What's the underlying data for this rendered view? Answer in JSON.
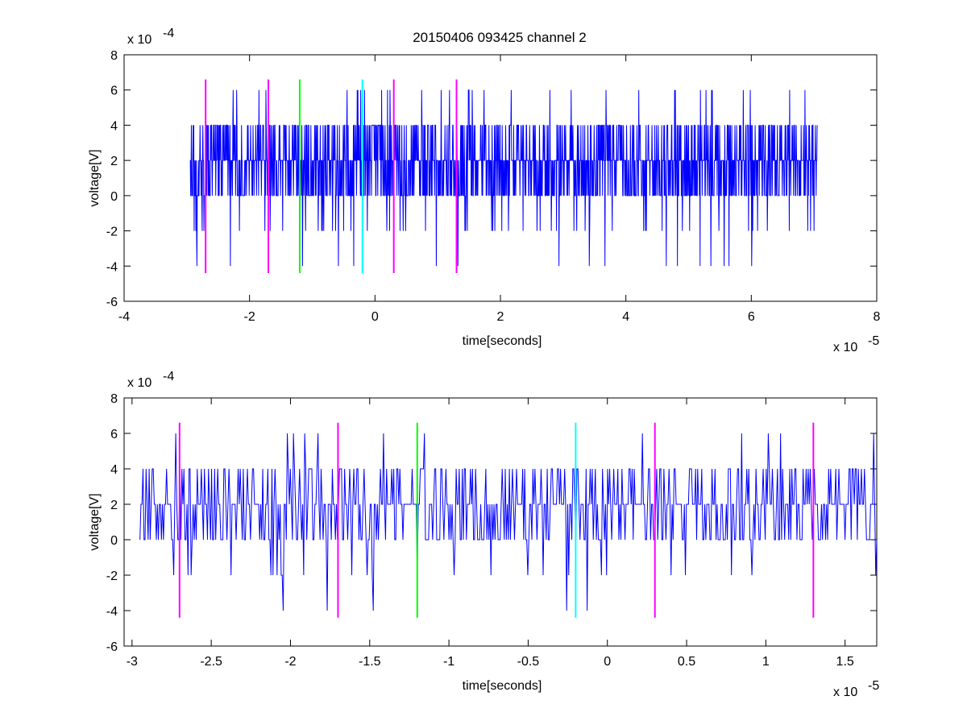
{
  "figure": {
    "title": "20150406 093425 channel 2"
  },
  "colors": {
    "signal": "#0000ff",
    "magenta": "#ff00ff",
    "green": "#00ff00",
    "cyan": "#00ffff",
    "axes": "#000000"
  },
  "chart_data": [
    {
      "type": "line",
      "xlabel": "time[seconds]",
      "ylabel": "voltage[V]",
      "x_multiplier": "x 10",
      "x_exponent": "-5",
      "y_multiplier": "x 10",
      "y_exponent": "-4",
      "xlim": [
        -4,
        8
      ],
      "ylim": [
        -6,
        8
      ],
      "xticks": [
        -4,
        -2,
        0,
        2,
        4,
        6,
        8
      ],
      "xtick_labels": [
        "-4",
        "-2",
        "0",
        "2",
        "4",
        "6",
        "8"
      ],
      "yticks": [
        -6,
        -4,
        -2,
        0,
        2,
        4,
        6,
        8
      ],
      "ytick_labels": [
        "-6",
        "-4",
        "-2",
        "0",
        "2",
        "4",
        "6",
        "8"
      ],
      "series": [
        {
          "color": "#0000ff",
          "x_range": [
            -2.95,
            7.05
          ],
          "values_observed_levels": [
            -4,
            -2,
            0,
            2,
            4,
            6
          ],
          "baseline": 2,
          "notes": "quantized noisy voltage trace"
        }
      ],
      "markers": [
        {
          "x": -2.7,
          "color": "#ff00ff",
          "y_range": [
            -4.4,
            6.6
          ]
        },
        {
          "x": -1.7,
          "color": "#ff00ff",
          "y_range": [
            -4.4,
            6.6
          ]
        },
        {
          "x": -1.2,
          "color": "#00ff00",
          "y_range": [
            -4.4,
            6.6
          ]
        },
        {
          "x": -0.2,
          "color": "#00ffff",
          "y_range": [
            -4.4,
            6.6
          ]
        },
        {
          "x": 0.3,
          "color": "#ff00ff",
          "y_range": [
            -4.4,
            6.6
          ]
        },
        {
          "x": 1.3,
          "color": "#ff00ff",
          "y_range": [
            -4.4,
            6.6
          ]
        }
      ],
      "grid": false
    },
    {
      "type": "line",
      "xlabel": "time[seconds]",
      "ylabel": "voltage[V]",
      "x_multiplier": "x 10",
      "x_exponent": "-5",
      "y_multiplier": "x 10",
      "y_exponent": "-4",
      "xlim": [
        -3.05,
        1.7
      ],
      "ylim": [
        -6,
        8
      ],
      "xticks": [
        -3,
        -2.5,
        -2,
        -1.5,
        -1,
        -0.5,
        0,
        0.5,
        1,
        1.5
      ],
      "xtick_labels": [
        "-3",
        "-2.5",
        "-2",
        "-1.5",
        "-1",
        "-0.5",
        "0",
        "0.5",
        "1",
        "1.5"
      ],
      "yticks": [
        -6,
        -4,
        -2,
        0,
        2,
        4,
        6,
        8
      ],
      "ytick_labels": [
        "-6",
        "-4",
        "-2",
        "0",
        "2",
        "4",
        "6",
        "8"
      ],
      "series": [
        {
          "color": "#0000ff",
          "x_range": [
            -2.95,
            1.7
          ],
          "values_observed_levels": [
            -4,
            -2,
            0,
            2,
            4,
            6
          ],
          "baseline": 2,
          "notes": "zoomed quantized noisy voltage trace"
        }
      ],
      "markers": [
        {
          "x": -2.7,
          "color": "#ff00ff",
          "y_range": [
            -4.4,
            6.6
          ]
        },
        {
          "x": -1.7,
          "color": "#ff00ff",
          "y_range": [
            -4.4,
            6.6
          ]
        },
        {
          "x": -1.2,
          "color": "#00ff00",
          "y_range": [
            -4.4,
            6.6
          ]
        },
        {
          "x": -0.2,
          "color": "#00ffff",
          "y_range": [
            -4.4,
            6.6
          ]
        },
        {
          "x": 0.3,
          "color": "#ff00ff",
          "y_range": [
            -4.4,
            6.6
          ]
        },
        {
          "x": 1.3,
          "color": "#ff00ff",
          "y_range": [
            -4.4,
            6.6
          ]
        }
      ],
      "grid": false
    }
  ]
}
